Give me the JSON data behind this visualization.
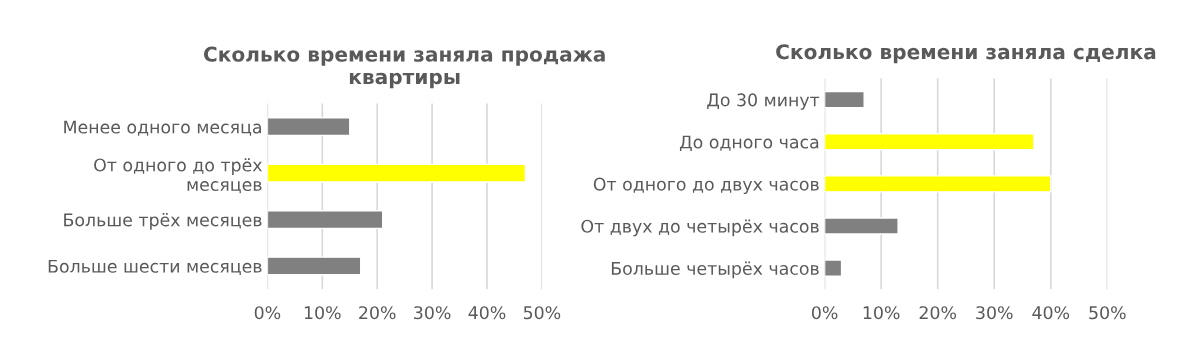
{
  "chart_data": [
    {
      "type": "bar",
      "orientation": "horizontal",
      "title": "Сколько времени заняла продажа квартиры",
      "categories": [
        "Менее одного месяца",
        "От одного до трёх месяцев",
        "Больше трёх месяцев",
        "Больше шести месяцев"
      ],
      "values": [
        15,
        47,
        21,
        17
      ],
      "colors": [
        "#808080",
        "#ffff00",
        "#808080",
        "#808080"
      ],
      "xlim": [
        0,
        50
      ],
      "xticks": [
        {
          "value": 0,
          "label": "0%"
        },
        {
          "value": 10,
          "label": "10%"
        },
        {
          "value": 20,
          "label": "20%"
        },
        {
          "value": 30,
          "label": "30%"
        },
        {
          "value": 40,
          "label": "40%"
        },
        {
          "value": 50,
          "label": "50%"
        }
      ],
      "grid": "x",
      "legend": false
    },
    {
      "type": "bar",
      "orientation": "horizontal",
      "title": "Сколько времени заняла сделка",
      "categories": [
        "До 30 минут",
        "До одного часа",
        "От одного до двух часов",
        "От двух до четырёх часов",
        "Больше четырёх часов"
      ],
      "values": [
        7,
        37,
        40,
        13,
        3
      ],
      "colors": [
        "#808080",
        "#ffff00",
        "#ffff00",
        "#808080",
        "#808080"
      ],
      "xlim": [
        0,
        50
      ],
      "xticks": [
        {
          "value": 0,
          "label": "0%"
        },
        {
          "value": 10,
          "label": "10%"
        },
        {
          "value": 20,
          "label": "20%"
        },
        {
          "value": 30,
          "label": "30%"
        },
        {
          "value": 40,
          "label": "40%"
        },
        {
          "value": 50,
          "label": "50%"
        }
      ],
      "grid": "x",
      "legend": false
    }
  ]
}
